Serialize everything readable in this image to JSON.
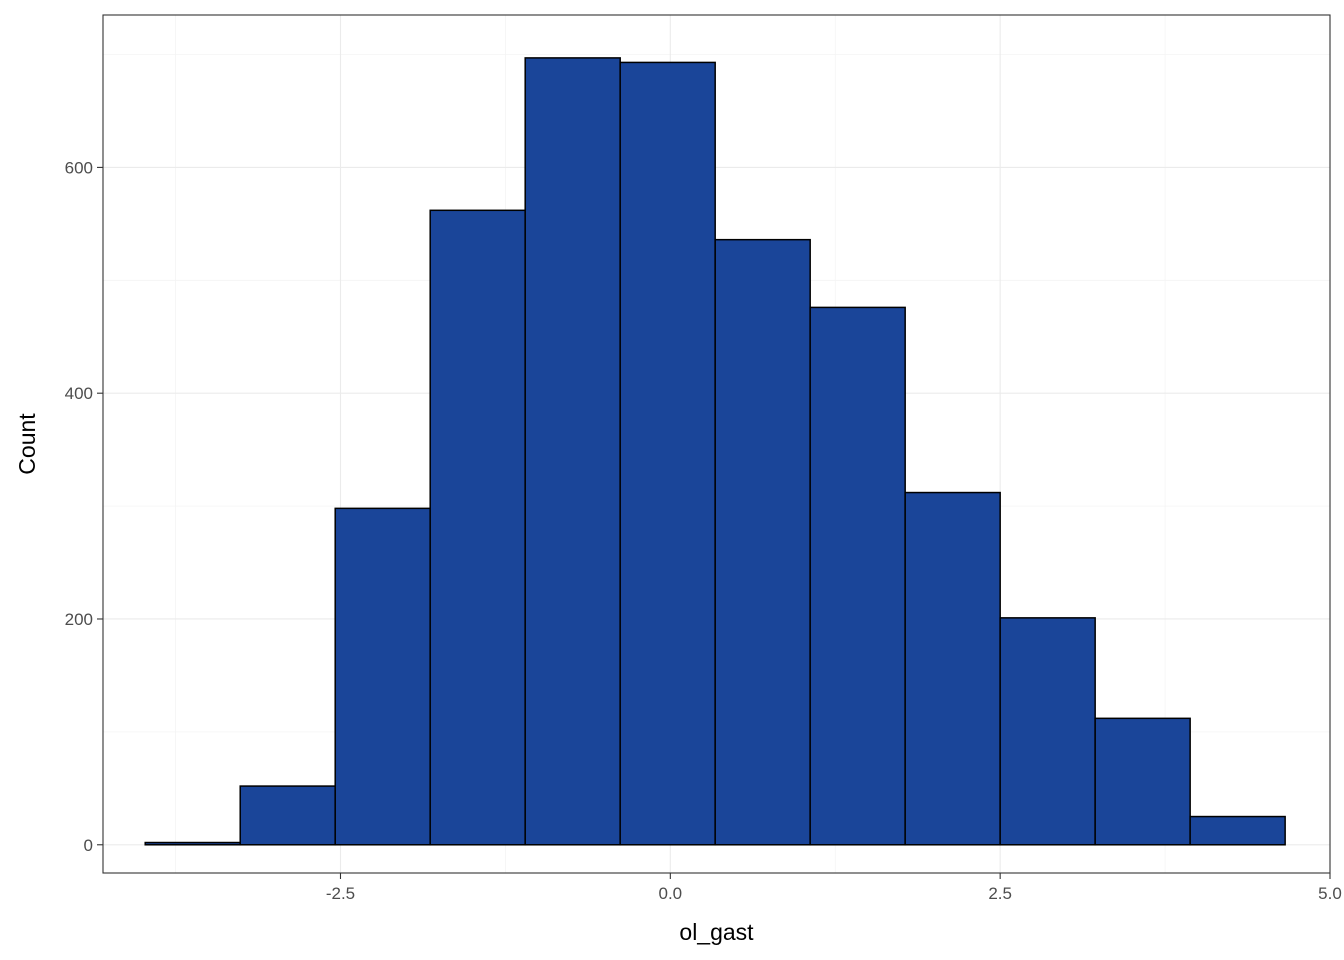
{
  "chart_data": {
    "type": "bar",
    "subtype": "histogram",
    "title": "",
    "xlabel": "ol_gast",
    "ylabel": "Count",
    "xlim": [
      -4.3,
      5.0
    ],
    "ylim": [
      -25,
      735
    ],
    "x_ticks": [
      -2.5,
      0.0,
      2.5,
      5.0
    ],
    "x_tick_labels": [
      "-2.5",
      "0.0",
      "2.5",
      "5.0"
    ],
    "y_ticks": [
      0,
      200,
      400,
      600
    ],
    "y_tick_labels": [
      "0",
      "200",
      "400",
      "600"
    ],
    "grid": true,
    "legend": "none",
    "bin_edges": [
      -3.98,
      -3.26,
      -2.54,
      -1.82,
      -1.1,
      -0.38,
      0.34,
      1.06,
      1.78,
      2.5,
      3.22,
      3.94,
      4.66
    ],
    "values": [
      2,
      52,
      298,
      562,
      697,
      693,
      536,
      476,
      312,
      201,
      112,
      25
    ],
    "colors": {
      "bar_fill": "#1a4599",
      "bar_stroke": "#000000",
      "grid_major": "#ebebeb",
      "grid_minor": "#f4f4f4",
      "panel_border": "#333333"
    }
  }
}
